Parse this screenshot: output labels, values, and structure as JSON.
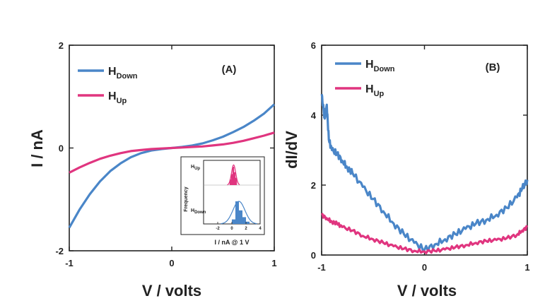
{
  "chart_data": [
    {
      "id": "A",
      "type": "line",
      "panel_label": "(A)",
      "xlabel": "V / volts",
      "ylabel": "I / nA",
      "xlim": [
        -1,
        1
      ],
      "ylim": [
        -2,
        2
      ],
      "xticks": [
        "-1",
        "0",
        "1"
      ],
      "yticks": [
        "-2",
        "0",
        "2"
      ],
      "legend_position": "top-left",
      "series": [
        {
          "name": "H_Down",
          "legend_main": "H",
          "legend_sub": "Down",
          "color": "#4a86c8",
          "x": [
            -1,
            -0.9,
            -0.8,
            -0.7,
            -0.6,
            -0.5,
            -0.4,
            -0.3,
            -0.2,
            -0.1,
            0,
            0.1,
            0.2,
            0.3,
            0.4,
            0.5,
            0.6,
            0.7,
            0.8,
            0.9,
            1
          ],
          "y": [
            -1.55,
            -1.2,
            -0.9,
            -0.65,
            -0.45,
            -0.3,
            -0.18,
            -0.1,
            -0.05,
            -0.02,
            0,
            0.02,
            0.05,
            0.09,
            0.15,
            0.22,
            0.31,
            0.41,
            0.53,
            0.67,
            0.85
          ]
        },
        {
          "name": "H_Up",
          "legend_main": "H",
          "legend_sub": "Up",
          "color": "#e0357f",
          "x": [
            -1,
            -0.9,
            -0.8,
            -0.7,
            -0.6,
            -0.5,
            -0.4,
            -0.3,
            -0.2,
            -0.1,
            0,
            0.1,
            0.2,
            0.3,
            0.4,
            0.5,
            0.6,
            0.7,
            0.8,
            0.9,
            1
          ],
          "y": [
            -0.48,
            -0.38,
            -0.29,
            -0.21,
            -0.15,
            -0.1,
            -0.06,
            -0.04,
            -0.02,
            -0.01,
            0,
            0.01,
            0.02,
            0.03,
            0.05,
            0.07,
            0.1,
            0.14,
            0.19,
            0.24,
            0.3
          ]
        }
      ],
      "inset": {
        "type": "histogram",
        "xlabel": "I / nA @ 1 V",
        "ylabel": "Frequency",
        "xlim": [
          -4,
          4
        ],
        "xticks": [
          "-2",
          "0",
          "2",
          "4"
        ],
        "up_label_main": "H",
        "up_label_sub": "Up",
        "down_label_main": "H",
        "down_label_sub": "Down",
        "up_bins": [
          {
            "x": -0.2,
            "count": 3
          },
          {
            "x": 0.0,
            "count": 6
          },
          {
            "x": 0.2,
            "count": 10
          },
          {
            "x": 0.4,
            "count": 7
          },
          {
            "x": 0.6,
            "count": 4
          }
        ],
        "up_fit": {
          "mean": 0.25,
          "sigma": 0.3,
          "peak": 11
        },
        "down_bins": [
          {
            "x": 0.25,
            "count": 2
          },
          {
            "x": 0.75,
            "count": 10
          },
          {
            "x": 1.25,
            "count": 6
          },
          {
            "x": 1.75,
            "count": 3
          },
          {
            "x": 2.25,
            "count": 1
          }
        ],
        "down_fit": {
          "mean": 1.0,
          "sigma": 0.85,
          "peak": 10
        }
      }
    },
    {
      "id": "B",
      "type": "line",
      "panel_label": "(B)",
      "xlabel": "V / volts",
      "ylabel": "dI/dV",
      "xlim": [
        -1,
        1
      ],
      "ylim": [
        0,
        6
      ],
      "xticks": [
        "-1",
        "0",
        "1"
      ],
      "yticks": [
        "0",
        "2",
        "4",
        "6"
      ],
      "legend_position": "top-left",
      "series": [
        {
          "name": "H_Down",
          "legend_main": "H",
          "legend_sub": "Down",
          "color": "#4a86c8",
          "x": [
            -1,
            -0.97,
            -0.95,
            -0.93,
            -0.9,
            -0.85,
            -0.8,
            -0.75,
            -0.7,
            -0.6,
            -0.5,
            -0.4,
            -0.3,
            -0.2,
            -0.1,
            0,
            0.1,
            0.2,
            0.3,
            0.4,
            0.5,
            0.6,
            0.7,
            0.8,
            0.9,
            0.95,
            1
          ],
          "y": [
            4.6,
            3.9,
            4.3,
            3.3,
            3.0,
            2.9,
            2.7,
            2.5,
            2.35,
            1.95,
            1.6,
            1.25,
            0.9,
            0.6,
            0.35,
            0.15,
            0.3,
            0.45,
            0.6,
            0.75,
            0.9,
            1.0,
            1.15,
            1.35,
            1.65,
            1.9,
            2.15
          ]
        },
        {
          "name": "H_Up",
          "legend_main": "H",
          "legend_sub": "Up",
          "color": "#e0357f",
          "x": [
            -1,
            -0.95,
            -0.9,
            -0.85,
            -0.8,
            -0.7,
            -0.6,
            -0.5,
            -0.4,
            -0.3,
            -0.2,
            -0.1,
            0,
            0.1,
            0.2,
            0.3,
            0.4,
            0.5,
            0.6,
            0.7,
            0.8,
            0.9,
            0.95,
            1
          ],
          "y": [
            1.15,
            1.05,
            0.95,
            0.9,
            0.8,
            0.7,
            0.55,
            0.45,
            0.35,
            0.25,
            0.18,
            0.12,
            0.1,
            0.12,
            0.16,
            0.22,
            0.28,
            0.35,
            0.4,
            0.43,
            0.48,
            0.58,
            0.7,
            0.8
          ]
        }
      ]
    }
  ]
}
